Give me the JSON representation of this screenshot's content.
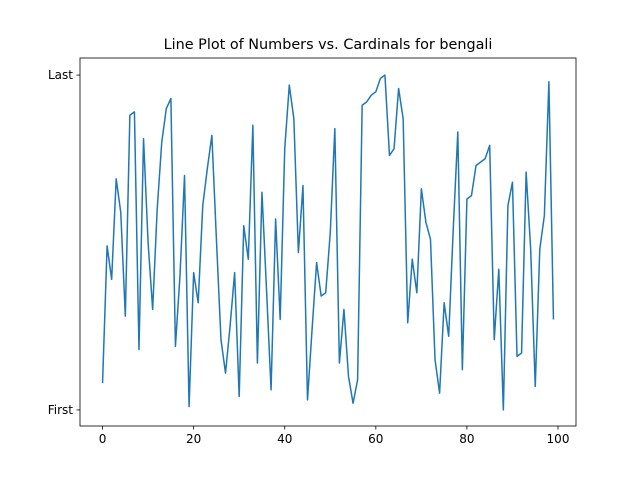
{
  "chart_data": {
    "type": "line",
    "title": "Line Plot of Numbers vs. Cardinals for bengali",
    "x": [
      0,
      1,
      2,
      3,
      4,
      5,
      6,
      7,
      8,
      9,
      10,
      11,
      12,
      13,
      14,
      15,
      16,
      17,
      18,
      19,
      20,
      21,
      22,
      23,
      24,
      25,
      26,
      27,
      28,
      29,
      30,
      31,
      32,
      33,
      34,
      35,
      36,
      37,
      38,
      39,
      40,
      41,
      42,
      43,
      44,
      45,
      46,
      47,
      48,
      49,
      50,
      51,
      52,
      53,
      54,
      55,
      56,
      57,
      58,
      59,
      60,
      61,
      62,
      63,
      64,
      65,
      66,
      67,
      68,
      69,
      70,
      71,
      72,
      73,
      74,
      75,
      76,
      77,
      78,
      79,
      80,
      81,
      82,
      83,
      84,
      85,
      86,
      87,
      88,
      89,
      90,
      91,
      92,
      93,
      94,
      95,
      96,
      97,
      98,
      99
    ],
    "values": [
      8,
      49,
      39,
      69,
      59,
      28,
      88,
      89,
      18,
      81,
      50,
      30,
      60,
      80,
      90,
      93,
      19,
      40,
      70,
      1,
      41,
      32,
      61,
      72,
      82,
      51,
      21,
      11,
      25,
      41,
      4,
      55,
      45,
      85,
      14,
      65,
      36,
      6,
      57,
      27,
      78,
      97,
      87,
      47,
      67,
      3,
      24,
      44,
      34,
      35,
      53,
      84,
      14,
      30,
      10,
      2,
      9,
      91,
      92,
      94,
      95,
      99,
      100,
      76,
      78,
      96,
      87,
      26,
      45,
      35,
      66,
      56,
      51,
      15,
      5,
      32,
      22,
      54,
      83,
      12,
      63,
      64,
      73,
      74,
      75,
      79,
      21,
      42,
      0,
      61,
      68,
      16,
      17,
      71,
      48,
      7,
      48,
      58,
      98,
      27
    ],
    "color": "#1f77b4",
    "xlim": [
      -4.95,
      103.95
    ],
    "xticks": [
      0,
      20,
      40,
      60,
      80,
      100
    ],
    "ylim": [
      -4.8,
      105.1
    ],
    "yticks": [
      {
        "value": 0,
        "label": "First"
      },
      {
        "value": 100,
        "label": "Last"
      }
    ]
  }
}
